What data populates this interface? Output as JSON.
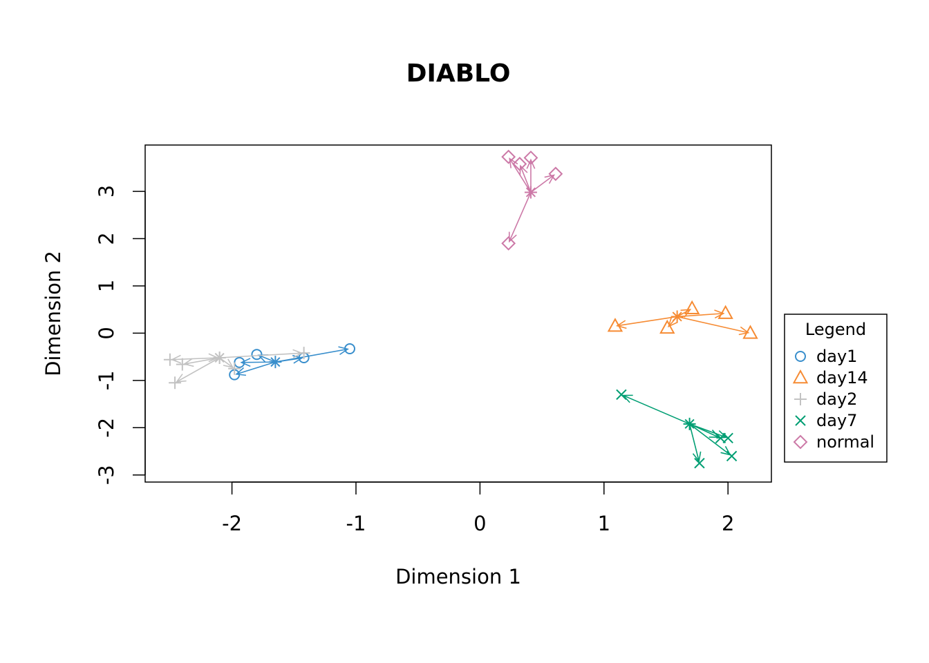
{
  "chart_data": {
    "type": "scatter",
    "title": "DIABLO",
    "xlabel": "Dimension 1",
    "ylabel": "Dimension 2",
    "xlim": [
      -2.7,
      2.35
    ],
    "ylim": [
      -3.15,
      3.98
    ],
    "x_ticks": [
      -2,
      -1,
      0,
      1,
      2
    ],
    "x_tick_labels": [
      "-2",
      "-1",
      "0",
      "1",
      "2"
    ],
    "y_ticks": [
      -3,
      -2,
      -1,
      0,
      1,
      2,
      3
    ],
    "y_tick_labels": [
      "-3",
      "-2",
      "-1",
      "0",
      "1",
      "2",
      "3"
    ],
    "grid": false,
    "legend": {
      "title": "Legend",
      "position": "right",
      "entries": [
        "day1",
        "day14",
        "day2",
        "day7",
        "normal"
      ]
    },
    "series": [
      {
        "name": "day1",
        "color": "#388ECC",
        "marker": "circle",
        "centroid": [
          -1.65,
          -0.61
        ],
        "points": [
          [
            -1.05,
            -0.33
          ],
          [
            -1.42,
            -0.52
          ],
          [
            -1.8,
            -0.45
          ],
          [
            -1.94,
            -0.62
          ],
          [
            -1.98,
            -0.88
          ]
        ]
      },
      {
        "name": "day14",
        "color": "#F68B33",
        "marker": "triangle",
        "centroid": [
          1.59,
          0.35
        ],
        "points": [
          [
            1.71,
            0.52
          ],
          [
            1.98,
            0.42
          ],
          [
            1.09,
            0.15
          ],
          [
            1.51,
            0.11
          ],
          [
            2.18,
            0.0
          ]
        ]
      },
      {
        "name": "day2",
        "color": "#C2C2C2",
        "marker": "plus",
        "centroid": [
          -2.1,
          -0.52
        ],
        "points": [
          [
            -1.42,
            -0.42
          ],
          [
            -2.5,
            -0.56
          ],
          [
            -2.1,
            -0.52
          ],
          [
            -2.4,
            -0.66
          ],
          [
            -2.46,
            -1.05
          ],
          [
            -1.98,
            -0.75
          ]
        ]
      },
      {
        "name": "day7",
        "color": "#009E73",
        "marker": "x",
        "centroid": [
          1.69,
          -1.92
        ],
        "points": [
          [
            1.14,
            -1.3
          ],
          [
            1.94,
            -2.22
          ],
          [
            2.0,
            -2.22
          ],
          [
            2.03,
            -2.6
          ],
          [
            1.77,
            -2.75
          ]
        ]
      },
      {
        "name": "normal",
        "color": "#CC79A7",
        "marker": "diamond",
        "centroid": [
          0.41,
          2.98
        ],
        "points": [
          [
            0.23,
            3.73
          ],
          [
            0.32,
            3.58
          ],
          [
            0.41,
            3.71
          ],
          [
            0.61,
            3.37
          ],
          [
            0.23,
            1.9
          ]
        ]
      }
    ]
  }
}
